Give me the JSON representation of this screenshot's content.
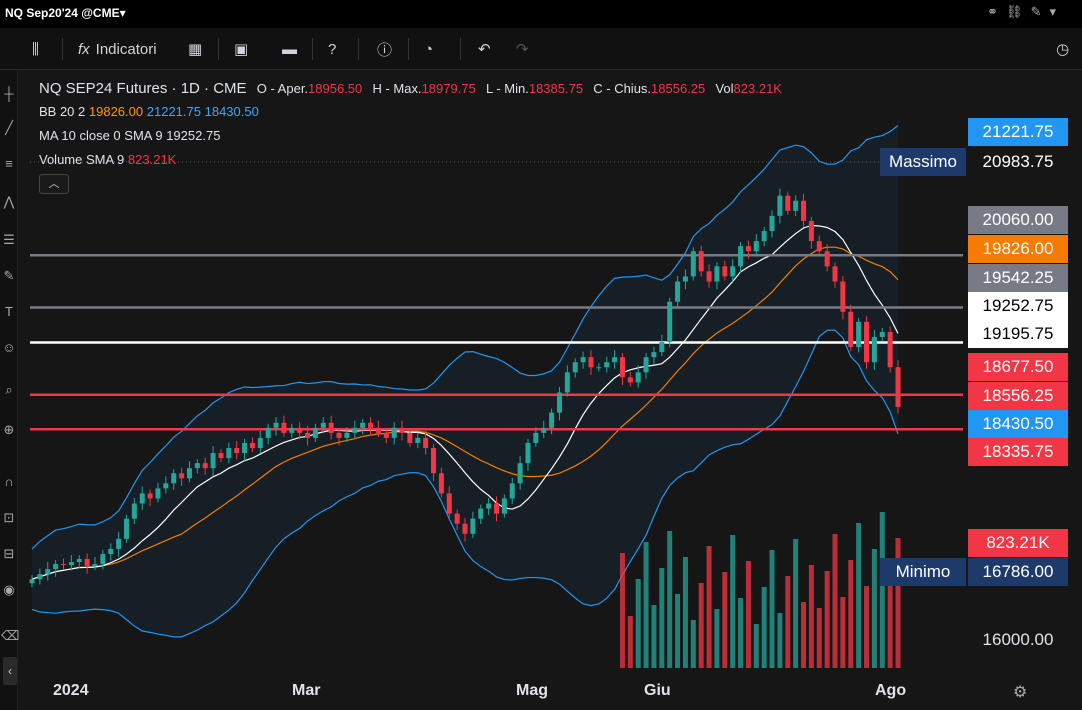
{
  "window": {
    "title": "NQ Sep20'24 @CME▾"
  },
  "toolbar": {
    "indicators_label": "Indicatori"
  },
  "legend": {
    "symbol": "NQ SEP24 Futures · 1D · CME",
    "open_label": "O - Aper.",
    "open": "18956.50",
    "high_label": "H - Max.",
    "high": "18979.75",
    "low_label": "L - Min.",
    "low": "18385.75",
    "close_label": "C - Chius.",
    "close": "18556.25",
    "vol_label": "Vol",
    "vol": "823.21K",
    "bb_label": "BB 20 2",
    "bb_mid": "19826.00",
    "bb_upper": "21221.75",
    "bb_lower": "18430.50",
    "ma_label": "MA 10 close 0 SMA 9",
    "ma_value": "19252.75",
    "volsma_label": "Volume SMA 9",
    "volsma_value": "823.21K"
  },
  "price_labels": [
    {
      "text": "21221.75",
      "bg": "#2196f3",
      "fg": "#ffffff"
    },
    {
      "text": "20983.75",
      "bg": "#161616",
      "fg": "#ffffff"
    },
    {
      "text": "20060.00",
      "bg": "#787b86",
      "fg": "#ffffff"
    },
    {
      "text": "19826.00",
      "bg": "#f57c00",
      "fg": "#ffffff"
    },
    {
      "text": "19542.25",
      "bg": "#787b86",
      "fg": "#ffffff"
    },
    {
      "text": "19252.75",
      "bg": "#ffffff",
      "fg": "#000000"
    },
    {
      "text": "19195.75",
      "bg": "#ffffff",
      "fg": "#000000"
    },
    {
      "text": "18677.50",
      "bg": "#f23645",
      "fg": "#ffffff"
    },
    {
      "text": "18556.25",
      "bg": "#f23645",
      "fg": "#ffffff"
    },
    {
      "text": "18430.50",
      "bg": "#2196f3",
      "fg": "#ffffff"
    },
    {
      "text": "18335.75",
      "bg": "#f23645",
      "fg": "#ffffff"
    },
    {
      "text": "823.21K",
      "bg": "#f23645",
      "fg": "#ffffff"
    },
    {
      "text": "16786.00",
      "bg": "#1e3a6b",
      "fg": "#ffffff"
    },
    {
      "text": "16000.00",
      "bg": "#161616",
      "fg": "#e0e3eb"
    }
  ],
  "tags": {
    "max": "Massimo",
    "min": "Minimo"
  },
  "x_axis": [
    "2024",
    "Mar",
    "Mag",
    "Giu",
    "Ago"
  ],
  "hlines": [
    {
      "price": 20060.0,
      "color": "#787b86"
    },
    {
      "price": 19542.25,
      "color": "#787b86"
    },
    {
      "price": 19195.75,
      "color": "#ffffff"
    },
    {
      "price": 18677.5,
      "color": "#f23645"
    },
    {
      "price": 18335.75,
      "color": "#f23645"
    }
  ],
  "colors": {
    "up": "#26a69a",
    "down": "#f23645",
    "bb": "#2196f3",
    "ma": "#ffffff",
    "basis": "#f57c00"
  },
  "chart_data": {
    "type": "candlestick",
    "price_range": [
      16000,
      21400
    ],
    "closes": [
      16850,
      16900,
      16950,
      17000,
      16990,
      17020,
      17050,
      16980,
      17000,
      17100,
      17150,
      17250,
      17450,
      17600,
      17700,
      17650,
      17750,
      17800,
      17900,
      17850,
      17950,
      18000,
      17950,
      18100,
      18050,
      18150,
      18100,
      18200,
      18150,
      18250,
      18350,
      18400,
      18300,
      18350,
      18300,
      18250,
      18350,
      18400,
      18300,
      18250,
      18300,
      18350,
      18400,
      18350,
      18300,
      18250,
      18350,
      18300,
      18200,
      18250,
      18150,
      17900,
      17700,
      17500,
      17400,
      17300,
      17450,
      17550,
      17600,
      17500,
      17650,
      17800,
      18000,
      18200,
      18300,
      18350,
      18500,
      18700,
      18900,
      19000,
      19050,
      18950,
      18950,
      19000,
      19050,
      18850,
      18800,
      18900,
      19050,
      19100,
      19200,
      19600,
      19800,
      19850,
      20100,
      19900,
      19800,
      19950,
      19850,
      19950,
      20150,
      20100,
      20200,
      20300,
      20450,
      20650,
      20500,
      20600,
      20400,
      20200,
      20100,
      19950,
      19800,
      19500,
      19150,
      19400,
      19000,
      19250,
      19300,
      18950,
      18556
    ]
  }
}
